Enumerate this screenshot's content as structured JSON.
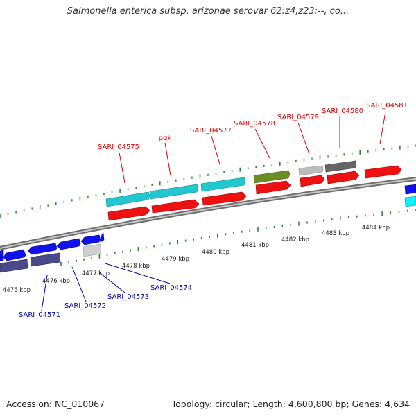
{
  "title": "Salmonella enterica subsp. arizonae serovar 62:z4,z23:--, co...",
  "colors": {
    "forward_label": "#dd0000",
    "reverse_label": "#0000aa",
    "backbone": "#888888",
    "tick": "#2a8c2a",
    "gene_forward": "#ee1111",
    "gene_reverse": "#1111ee"
  },
  "upper_tracks": {
    "features": [
      {
        "id": "f1",
        "label": "SARI_04575",
        "color": "#22c8d0"
      },
      {
        "id": "f2",
        "label": "pgk",
        "color": "#22c8d0"
      },
      {
        "id": "f3",
        "label": "SARI_04577",
        "color": "#22c8d0"
      },
      {
        "id": "f4",
        "label": "SARI_04578",
        "color": "#6b8e23"
      },
      {
        "id": "f5",
        "label": "SARI_04579",
        "color": "#bdbdbd"
      },
      {
        "id": "f6",
        "label": "SARI_04580",
        "color": "#666666"
      },
      {
        "id": "f7",
        "label": "SARI_04581",
        "color": "#ee1111"
      }
    ]
  },
  "lower_tracks": {
    "features": [
      {
        "id": "r1",
        "label": "SARI_04571"
      },
      {
        "id": "r2",
        "label": "SARI_04572"
      },
      {
        "id": "r3",
        "label": "SARI_04573"
      },
      {
        "id": "r4",
        "label": "SARI_04574"
      }
    ]
  },
  "ruler": {
    "unit": "kbp",
    "ticks": [
      {
        "label": "4475 kbp"
      },
      {
        "label": "4476 kbp"
      },
      {
        "label": "4477 kbp"
      },
      {
        "label": "4478 kbp"
      },
      {
        "label": "4479 kbp"
      },
      {
        "label": "4480 kbp"
      },
      {
        "label": "4481 kbp"
      },
      {
        "label": "4482 kbp"
      },
      {
        "label": "4483 kbp"
      },
      {
        "label": "4484 kbp"
      }
    ]
  },
  "footer": {
    "accession": "Accession: NC_010067",
    "summary": "Topology: circular; Length: 4,600,800 bp; Genes: 4,634"
  }
}
